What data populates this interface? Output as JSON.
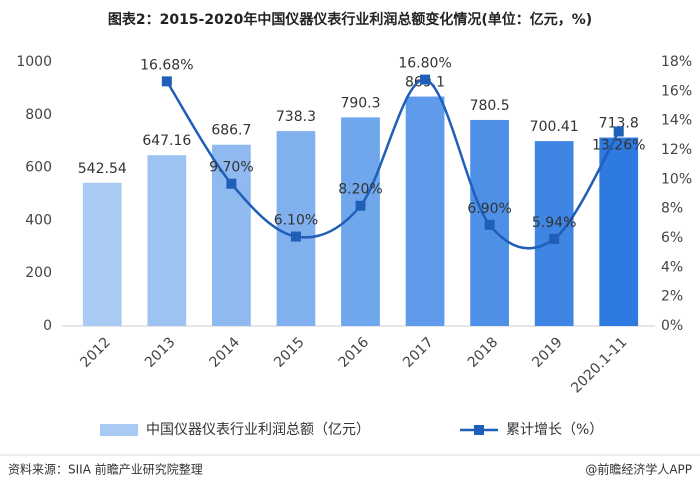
{
  "chart_data": {
    "type": "bar-line",
    "title": "图表2：2015-2020年中国仪器仪表行业利润总额变化情况(单位：亿元，%)",
    "categories": [
      "2012",
      "2013",
      "2014",
      "2015",
      "2016",
      "2017",
      "2018",
      "2019",
      "2020.1-11"
    ],
    "series": [
      {
        "name": "中国仪器仪表行业利润总额（亿元）",
        "type": "bar",
        "color": "#5b9be8",
        "colors": [
          "#a9cbf3",
          "#9dc3f2",
          "#8fbaf0",
          "#80b0ee",
          "#70a6ec",
          "#5f9bea",
          "#4f90e7",
          "#3f85e4",
          "#2f7ae1"
        ],
        "values": [
          542.54,
          647.16,
          686.7,
          738.3,
          790.3,
          869.1,
          780.5,
          700.41,
          713.8
        ]
      },
      {
        "name": "累计增长（%）",
        "type": "line",
        "axis": "y2",
        "color": "#1f5fb8",
        "values": [
          null,
          16.68,
          9.7,
          6.1,
          8.2,
          16.8,
          6.9,
          5.94,
          13.26
        ],
        "value_labels": [
          null,
          "16.68%",
          "9.70%",
          "6.10%",
          "8.20%",
          "16.80%",
          "6.90%",
          "5.94%",
          "13.26%"
        ]
      }
    ],
    "ylim": [
      0,
      1000
    ],
    "yticks": [
      0,
      200,
      400,
      600,
      800,
      1000
    ],
    "y2lim": [
      0,
      18
    ],
    "y2ticks": [
      {
        "value": 0,
        "label": "0%"
      },
      {
        "value": 2,
        "label": "2%"
      },
      {
        "value": 4,
        "label": "4%"
      },
      {
        "value": 6,
        "label": "6%"
      },
      {
        "value": 8,
        "label": "8%"
      },
      {
        "value": 10,
        "label": "10%"
      },
      {
        "value": 12,
        "label": "12%"
      },
      {
        "value": 14,
        "label": "14%"
      },
      {
        "value": 16,
        "label": "16%"
      },
      {
        "value": 18,
        "label": "18%"
      }
    ],
    "legend": "bottom",
    "source": "资料来源：SIIA 前瞻产业研究院整理",
    "credit": "@前瞻经济学人APP"
  }
}
